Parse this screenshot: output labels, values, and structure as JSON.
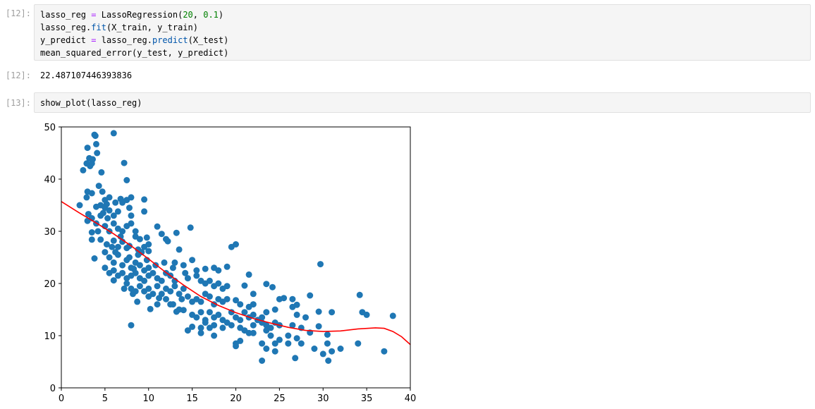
{
  "cells": [
    {
      "prompt_in": "[12]:",
      "lines": [
        {
          "var": "lasso_reg",
          "op": "=",
          "call": "LassoRegression(",
          "n1": "20",
          "sep": ", ",
          "n2": "0.1",
          "end": ")"
        },
        {
          "pre": "lasso_reg.",
          "attr": "fit",
          "post": "(X_train, y_train)"
        },
        {
          "var": "y_predict",
          "op": "=",
          "pre": "lasso_reg.",
          "attr": "predict",
          "post": "(X_test)"
        },
        {
          "text": "mean_squared_error(y_test, y_predict)"
        }
      ],
      "prompt_out": "[12]:",
      "output": "22.487107446393836"
    },
    {
      "prompt_in": "[13]:",
      "code": "show_plot(lasso_reg)"
    }
  ],
  "colors": {
    "points": "#1f77b4",
    "curve": "#ff0000"
  },
  "chart_data": {
    "type": "scatter",
    "xlim": [
      0,
      40
    ],
    "ylim": [
      0,
      50
    ],
    "xticks": [
      0,
      5,
      10,
      15,
      20,
      25,
      30,
      35,
      40
    ],
    "yticks": [
      0,
      10,
      20,
      30,
      40,
      50
    ],
    "grid": false,
    "points": [
      [
        2.1,
        35.0
      ],
      [
        2.5,
        41.7
      ],
      [
        2.9,
        43.0
      ],
      [
        3.0,
        46.0
      ],
      [
        3.2,
        44.0
      ],
      [
        3.3,
        42.5
      ],
      [
        3.5,
        43.0
      ],
      [
        3.6,
        43.8
      ],
      [
        3.8,
        48.5
      ],
      [
        3.9,
        48.3
      ],
      [
        4.0,
        46.7
      ],
      [
        4.1,
        45.0
      ],
      [
        4.3,
        38.7
      ],
      [
        4.6,
        41.3
      ],
      [
        4.7,
        37.6
      ],
      [
        5.0,
        36.0
      ],
      [
        5.2,
        35.2
      ],
      [
        5.5,
        36.5
      ],
      [
        6.0,
        48.8
      ],
      [
        7.2,
        43.1
      ],
      [
        7.5,
        39.8
      ],
      [
        3.0,
        37.6
      ],
      [
        3.5,
        37.3
      ],
      [
        2.9,
        36.5
      ],
      [
        3.1,
        33.3
      ],
      [
        4.0,
        34.7
      ],
      [
        4.5,
        35.0
      ],
      [
        5.0,
        34.5
      ],
      [
        5.5,
        34.0
      ],
      [
        6.0,
        33.0
      ],
      [
        6.5,
        33.8
      ],
      [
        7.0,
        35.5
      ],
      [
        7.5,
        36.0
      ],
      [
        8.0,
        36.5
      ],
      [
        9.5,
        36.1
      ],
      [
        9.5,
        33.8
      ],
      [
        8.0,
        33.0
      ],
      [
        3.0,
        32.0
      ],
      [
        3.5,
        32.5
      ],
      [
        4.0,
        31.5
      ],
      [
        4.5,
        33.0
      ],
      [
        5.0,
        31.0
      ],
      [
        5.5,
        30.0
      ],
      [
        6.0,
        31.5
      ],
      [
        6.5,
        30.5
      ],
      [
        7.0,
        30.0
      ],
      [
        7.5,
        31.0
      ],
      [
        8.0,
        31.5
      ],
      [
        8.5,
        30.0
      ],
      [
        3.5,
        29.8
      ],
      [
        3.5,
        28.4
      ],
      [
        4.5,
        28.4
      ],
      [
        5.2,
        27.5
      ],
      [
        6.0,
        28.2
      ],
      [
        6.5,
        27.0
      ],
      [
        7.0,
        28.0
      ],
      [
        7.5,
        26.8
      ],
      [
        8.5,
        29.0
      ],
      [
        9.0,
        28.5
      ],
      [
        9.5,
        27.0
      ],
      [
        10.0,
        27.5
      ],
      [
        9.8,
        28.8
      ],
      [
        11.0,
        30.9
      ],
      [
        11.5,
        29.5
      ],
      [
        12.0,
        28.5
      ],
      [
        13.2,
        29.7
      ],
      [
        14.8,
        30.7
      ],
      [
        12.2,
        28.1
      ],
      [
        3.8,
        24.8
      ],
      [
        5.0,
        26.0
      ],
      [
        5.5,
        25.0
      ],
      [
        6.0,
        24.0
      ],
      [
        6.5,
        25.5
      ],
      [
        7.0,
        23.5
      ],
      [
        7.5,
        24.5
      ],
      [
        8.0,
        23.0
      ],
      [
        8.5,
        24.0
      ],
      [
        9.0,
        23.5
      ],
      [
        9.5,
        22.5
      ],
      [
        10.0,
        23.0
      ],
      [
        5.0,
        23.0
      ],
      [
        5.5,
        22.0
      ],
      [
        6.0,
        22.5
      ],
      [
        6.5,
        21.5
      ],
      [
        7.0,
        22.0
      ],
      [
        7.5,
        21.0
      ],
      [
        8.0,
        21.5
      ],
      [
        8.5,
        22.0
      ],
      [
        9.0,
        21.0
      ],
      [
        9.5,
        20.5
      ],
      [
        10.0,
        21.5
      ],
      [
        10.5,
        22.0
      ],
      [
        11.0,
        21.0
      ],
      [
        11.5,
        20.5
      ],
      [
        12.0,
        22.0
      ],
      [
        12.5,
        21.5
      ],
      [
        13.0,
        20.5
      ],
      [
        6.0,
        20.6
      ],
      [
        7.5,
        20.0
      ],
      [
        8.0,
        19.0
      ],
      [
        8.5,
        18.5
      ],
      [
        9.0,
        19.5
      ],
      [
        9.5,
        18.5
      ],
      [
        10.0,
        19.0
      ],
      [
        10.5,
        18.0
      ],
      [
        11.0,
        19.5
      ],
      [
        11.5,
        18.0
      ],
      [
        12.0,
        19.0
      ],
      [
        12.5,
        18.5
      ],
      [
        13.0,
        19.5
      ],
      [
        13.5,
        18.0
      ],
      [
        14.0,
        19.0
      ],
      [
        8.2,
        18.0
      ],
      [
        8.7,
        16.5
      ],
      [
        10.0,
        17.5
      ],
      [
        11.0,
        16.0
      ],
      [
        12.0,
        17.0
      ],
      [
        12.8,
        16.0
      ],
      [
        13.5,
        15.0
      ],
      [
        14.5,
        17.5
      ],
      [
        15.0,
        16.5
      ],
      [
        15.5,
        17.0
      ],
      [
        16.0,
        16.5
      ],
      [
        16.5,
        18.0
      ],
      [
        17.0,
        17.5
      ],
      [
        17.5,
        16.0
      ],
      [
        18.0,
        17.0
      ],
      [
        18.5,
        16.5
      ],
      [
        19.0,
        17.0
      ],
      [
        10.2,
        15.1
      ],
      [
        12.5,
        16.0
      ],
      [
        13.2,
        14.6
      ],
      [
        14.0,
        14.9
      ],
      [
        15.0,
        14.0
      ],
      [
        15.5,
        13.5
      ],
      [
        16.0,
        14.5
      ],
      [
        16.5,
        13.0
      ],
      [
        17.0,
        14.5
      ],
      [
        17.5,
        13.5
      ],
      [
        18.0,
        14.0
      ],
      [
        18.5,
        13.0
      ],
      [
        19.0,
        12.5
      ],
      [
        19.5,
        14.5
      ],
      [
        20.0,
        13.5
      ],
      [
        20.5,
        13.0
      ],
      [
        21.0,
        14.5
      ],
      [
        21.5,
        13.5
      ],
      [
        22.0,
        14.0
      ],
      [
        22.5,
        13.0
      ],
      [
        23.0,
        13.5
      ],
      [
        8.0,
        12.0
      ],
      [
        14.5,
        11.0
      ],
      [
        15.0,
        11.7
      ],
      [
        16.0,
        11.5
      ],
      [
        16.5,
        12.5
      ],
      [
        17.0,
        11.5
      ],
      [
        17.5,
        12.0
      ],
      [
        18.5,
        11.5
      ],
      [
        19.5,
        12.0
      ],
      [
        20.5,
        11.5
      ],
      [
        21.0,
        11.0
      ],
      [
        21.5,
        10.5
      ],
      [
        22.0,
        10.5
      ],
      [
        23.0,
        12.5
      ],
      [
        23.5,
        12.0
      ],
      [
        24.0,
        11.5
      ],
      [
        24.5,
        12.5
      ],
      [
        25.0,
        12.0
      ],
      [
        16.0,
        10.5
      ],
      [
        17.5,
        10.0
      ],
      [
        10.0,
        26.2
      ],
      [
        13.5,
        26.5
      ],
      [
        15.0,
        24.5
      ],
      [
        13.0,
        24.0
      ],
      [
        14.0,
        23.5
      ],
      [
        15.5,
        22.5
      ],
      [
        16.5,
        22.8
      ],
      [
        17.5,
        23.0
      ],
      [
        18.0,
        22.5
      ],
      [
        19.0,
        23.2
      ],
      [
        21.5,
        21.7
      ],
      [
        14.5,
        21.0
      ],
      [
        15.5,
        21.5
      ],
      [
        16.0,
        20.5
      ],
      [
        16.5,
        20.0
      ],
      [
        17.0,
        20.5
      ],
      [
        17.5,
        19.5
      ],
      [
        18.0,
        20.0
      ],
      [
        18.5,
        19.0
      ],
      [
        19.0,
        19.5
      ],
      [
        19.5,
        27.0
      ],
      [
        20.0,
        27.5
      ],
      [
        21.0,
        19.6
      ],
      [
        22.0,
        18.0
      ],
      [
        23.5,
        19.9
      ],
      [
        24.2,
        19.3
      ],
      [
        25.0,
        17.0
      ],
      [
        25.5,
        17.2
      ],
      [
        26.5,
        17.0
      ],
      [
        28.5,
        17.7
      ],
      [
        29.7,
        23.7
      ],
      [
        34.2,
        17.8
      ],
      [
        20.0,
        16.8
      ],
      [
        20.5,
        16.0
      ],
      [
        21.5,
        15.5
      ],
      [
        22.0,
        16.0
      ],
      [
        23.5,
        14.5
      ],
      [
        24.5,
        15.0
      ],
      [
        26.5,
        15.5
      ],
      [
        27.0,
        15.9
      ],
      [
        27.0,
        14.0
      ],
      [
        28.0,
        13.5
      ],
      [
        29.5,
        14.6
      ],
      [
        31.0,
        14.5
      ],
      [
        34.5,
        14.5
      ],
      [
        35.0,
        14.0
      ],
      [
        38.0,
        13.8
      ],
      [
        22.0,
        12.0
      ],
      [
        23.5,
        11.0
      ],
      [
        26.5,
        12.0
      ],
      [
        27.5,
        11.5
      ],
      [
        28.5,
        10.6
      ],
      [
        29.5,
        11.8
      ],
      [
        30.5,
        10.2
      ],
      [
        24.0,
        10.0
      ],
      [
        25.0,
        9.2
      ],
      [
        26.0,
        10.0
      ],
      [
        27.0,
        9.5
      ],
      [
        24.5,
        8.5
      ],
      [
        20.0,
        8.5
      ],
      [
        20.0,
        8.0
      ],
      [
        20.5,
        9.0
      ],
      [
        23.0,
        8.5
      ],
      [
        23.5,
        7.5
      ],
      [
        24.5,
        7.0
      ],
      [
        26.0,
        8.5
      ],
      [
        27.5,
        8.5
      ],
      [
        29.0,
        7.5
      ],
      [
        30.5,
        8.5
      ],
      [
        31.0,
        7.0
      ],
      [
        32.0,
        7.5
      ],
      [
        34.0,
        8.5
      ],
      [
        37.0,
        7.0
      ],
      [
        23.0,
        5.2
      ],
      [
        26.8,
        5.7
      ],
      [
        30.0,
        6.5
      ],
      [
        30.6,
        5.2
      ],
      [
        5.8,
        27.0
      ],
      [
        6.2,
        26.0
      ],
      [
        7.8,
        25.0
      ],
      [
        8.8,
        25.5
      ],
      [
        9.2,
        26.0
      ],
      [
        10.8,
        23.5
      ],
      [
        11.8,
        24.0
      ],
      [
        12.8,
        23.0
      ],
      [
        14.2,
        22.0
      ],
      [
        8.3,
        22.8
      ],
      [
        9.8,
        24.5
      ],
      [
        7.2,
        19.0
      ],
      [
        11.2,
        17.2
      ],
      [
        13.8,
        17.0
      ],
      [
        6.8,
        29.0
      ],
      [
        5.3,
        32.5
      ],
      [
        4.2,
        30.0
      ],
      [
        7.8,
        27.2
      ],
      [
        8.8,
        26.5
      ],
      [
        6.2,
        35.5
      ],
      [
        6.8,
        36.2
      ],
      [
        7.8,
        34.5
      ],
      [
        4.8,
        33.5
      ]
    ],
    "curve": [
      [
        0,
        35.7
      ],
      [
        2,
        33.6
      ],
      [
        4,
        31.6
      ],
      [
        6,
        29.5
      ],
      [
        8,
        27.2
      ],
      [
        10,
        24.7
      ],
      [
        12,
        22.1
      ],
      [
        14,
        19.7
      ],
      [
        16,
        17.5
      ],
      [
        18,
        15.8
      ],
      [
        20,
        14.4
      ],
      [
        22,
        13.3
      ],
      [
        24,
        12.4
      ],
      [
        26,
        11.6
      ],
      [
        28,
        11.0
      ],
      [
        30,
        10.8
      ],
      [
        32,
        10.9
      ],
      [
        34,
        11.3
      ],
      [
        36,
        11.5
      ],
      [
        37,
        11.4
      ],
      [
        38,
        10.8
      ],
      [
        39,
        9.8
      ],
      [
        40,
        8.3
      ]
    ]
  }
}
